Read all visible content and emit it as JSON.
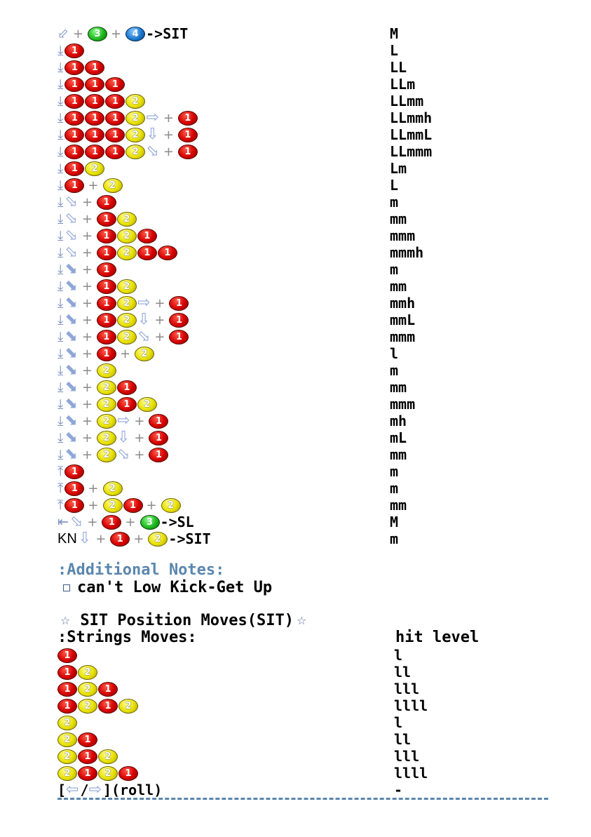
{
  "top_rows": [
    {
      "seq": [
        {
          "t": "dir",
          "v": "⬃"
        },
        {
          "t": "plus"
        },
        {
          "t": "btn",
          "v": "3"
        },
        {
          "t": "plus"
        },
        {
          "t": "btn",
          "v": "4"
        },
        {
          "t": "text",
          "v": "->SIT"
        }
      ],
      "level": "M"
    },
    {
      "seq": [
        {
          "t": "dir",
          "v": "⤓"
        },
        {
          "t": "btn",
          "v": "1"
        }
      ],
      "level": "L"
    },
    {
      "seq": [
        {
          "t": "dir",
          "v": "⤓"
        },
        {
          "t": "btn",
          "v": "1"
        },
        {
          "t": "btn",
          "v": "1"
        }
      ],
      "level": "LL"
    },
    {
      "seq": [
        {
          "t": "dir",
          "v": "⤓"
        },
        {
          "t": "btn",
          "v": "1"
        },
        {
          "t": "btn",
          "v": "1"
        },
        {
          "t": "btn",
          "v": "1"
        }
      ],
      "level": "LLm"
    },
    {
      "seq": [
        {
          "t": "dir",
          "v": "⤓"
        },
        {
          "t": "btn",
          "v": "1"
        },
        {
          "t": "btn",
          "v": "1"
        },
        {
          "t": "btn",
          "v": "1"
        },
        {
          "t": "btn",
          "v": "2"
        }
      ],
      "level": "LLmm"
    },
    {
      "seq": [
        {
          "t": "dir",
          "v": "⤓"
        },
        {
          "t": "btn",
          "v": "1"
        },
        {
          "t": "btn",
          "v": "1"
        },
        {
          "t": "btn",
          "v": "1"
        },
        {
          "t": "btn",
          "v": "2"
        },
        {
          "t": "arrow",
          "v": "⇨"
        },
        {
          "t": "plus"
        },
        {
          "t": "btn",
          "v": "1"
        }
      ],
      "level": "LLmmh"
    },
    {
      "seq": [
        {
          "t": "dir",
          "v": "⤓"
        },
        {
          "t": "btn",
          "v": "1"
        },
        {
          "t": "btn",
          "v": "1"
        },
        {
          "t": "btn",
          "v": "1"
        },
        {
          "t": "btn",
          "v": "2"
        },
        {
          "t": "arrow",
          "v": "⇩"
        },
        {
          "t": "plus"
        },
        {
          "t": "btn",
          "v": "1"
        }
      ],
      "level": "LLmmL"
    },
    {
      "seq": [
        {
          "t": "dir",
          "v": "⤓"
        },
        {
          "t": "btn",
          "v": "1"
        },
        {
          "t": "btn",
          "v": "1"
        },
        {
          "t": "btn",
          "v": "1"
        },
        {
          "t": "btn",
          "v": "2"
        },
        {
          "t": "arrow",
          "v": "⬂"
        },
        {
          "t": "plus"
        },
        {
          "t": "btn",
          "v": "1"
        }
      ],
      "level": "LLmmm"
    },
    {
      "seq": [
        {
          "t": "dir",
          "v": "⤓"
        },
        {
          "t": "btn",
          "v": "1"
        },
        {
          "t": "btn",
          "v": "2"
        }
      ],
      "level": "Lm"
    },
    {
      "seq": [
        {
          "t": "dir",
          "v": "⤓"
        },
        {
          "t": "btn",
          "v": "1"
        },
        {
          "t": "plus"
        },
        {
          "t": "btn",
          "v": "2"
        }
      ],
      "level": "L"
    },
    {
      "seq": [
        {
          "t": "dir",
          "v": "⤓"
        },
        {
          "t": "arrow",
          "v": "⬂"
        },
        {
          "t": "plus"
        },
        {
          "t": "btn",
          "v": "1"
        }
      ],
      "level": "m"
    },
    {
      "seq": [
        {
          "t": "dir",
          "v": "⤓"
        },
        {
          "t": "arrow",
          "v": "⬂"
        },
        {
          "t": "plus"
        },
        {
          "t": "btn",
          "v": "1"
        },
        {
          "t": "btn",
          "v": "2"
        }
      ],
      "level": "mm"
    },
    {
      "seq": [
        {
          "t": "dir",
          "v": "⤓"
        },
        {
          "t": "arrow",
          "v": "⬂"
        },
        {
          "t": "plus"
        },
        {
          "t": "btn",
          "v": "1"
        },
        {
          "t": "btn",
          "v": "2"
        },
        {
          "t": "btn",
          "v": "1"
        }
      ],
      "level": "mmm"
    },
    {
      "seq": [
        {
          "t": "dir",
          "v": "⤓"
        },
        {
          "t": "arrow",
          "v": "⬂"
        },
        {
          "t": "plus"
        },
        {
          "t": "btn",
          "v": "1"
        },
        {
          "t": "btn",
          "v": "2"
        },
        {
          "t": "btn",
          "v": "1"
        },
        {
          "t": "btn",
          "v": "1"
        }
      ],
      "level": "mmmh"
    },
    {
      "seq": [
        {
          "t": "dir",
          "v": "⤓"
        },
        {
          "t": "arrow",
          "v": "⬊"
        },
        {
          "t": "plus"
        },
        {
          "t": "btn",
          "v": "1"
        }
      ],
      "level": "m"
    },
    {
      "seq": [
        {
          "t": "dir",
          "v": "⤓"
        },
        {
          "t": "arrow",
          "v": "⬊"
        },
        {
          "t": "plus"
        },
        {
          "t": "btn",
          "v": "1"
        },
        {
          "t": "btn",
          "v": "2"
        }
      ],
      "level": "mm"
    },
    {
      "seq": [
        {
          "t": "dir",
          "v": "⤓"
        },
        {
          "t": "arrow",
          "v": "⬊"
        },
        {
          "t": "plus"
        },
        {
          "t": "btn",
          "v": "1"
        },
        {
          "t": "btn",
          "v": "2"
        },
        {
          "t": "arrow",
          "v": "⇨"
        },
        {
          "t": "plus"
        },
        {
          "t": "btn",
          "v": "1"
        }
      ],
      "level": "mmh"
    },
    {
      "seq": [
        {
          "t": "dir",
          "v": "⤓"
        },
        {
          "t": "arrow",
          "v": "⬊"
        },
        {
          "t": "plus"
        },
        {
          "t": "btn",
          "v": "1"
        },
        {
          "t": "btn",
          "v": "2"
        },
        {
          "t": "arrow",
          "v": "⇩"
        },
        {
          "t": "plus"
        },
        {
          "t": "btn",
          "v": "1"
        }
      ],
      "level": "mmL"
    },
    {
      "seq": [
        {
          "t": "dir",
          "v": "⤓"
        },
        {
          "t": "arrow",
          "v": "⬊"
        },
        {
          "t": "plus"
        },
        {
          "t": "btn",
          "v": "1"
        },
        {
          "t": "btn",
          "v": "2"
        },
        {
          "t": "arrow",
          "v": "⬂"
        },
        {
          "t": "plus"
        },
        {
          "t": "btn",
          "v": "1"
        }
      ],
      "level": "mmm"
    },
    {
      "seq": [
        {
          "t": "dir",
          "v": "⤓"
        },
        {
          "t": "arrow",
          "v": "⬊"
        },
        {
          "t": "plus"
        },
        {
          "t": "btn",
          "v": "1"
        },
        {
          "t": "plus"
        },
        {
          "t": "btn",
          "v": "2"
        }
      ],
      "level": "l"
    },
    {
      "seq": [
        {
          "t": "dir",
          "v": "⤓"
        },
        {
          "t": "arrow",
          "v": "⬊"
        },
        {
          "t": "plus"
        },
        {
          "t": "btn",
          "v": "2"
        }
      ],
      "level": "m"
    },
    {
      "seq": [
        {
          "t": "dir",
          "v": "⤓"
        },
        {
          "t": "arrow",
          "v": "⬊"
        },
        {
          "t": "plus"
        },
        {
          "t": "btn",
          "v": "2"
        },
        {
          "t": "btn",
          "v": "1"
        }
      ],
      "level": "mm"
    },
    {
      "seq": [
        {
          "t": "dir",
          "v": "⤓"
        },
        {
          "t": "arrow",
          "v": "⬊"
        },
        {
          "t": "plus"
        },
        {
          "t": "btn",
          "v": "2"
        },
        {
          "t": "btn",
          "v": "1"
        },
        {
          "t": "btn",
          "v": "2"
        }
      ],
      "level": "mmm"
    },
    {
      "seq": [
        {
          "t": "dir",
          "v": "⤓"
        },
        {
          "t": "arrow",
          "v": "⬊"
        },
        {
          "t": "plus"
        },
        {
          "t": "btn",
          "v": "2"
        },
        {
          "t": "arrow",
          "v": "⇨"
        },
        {
          "t": "plus"
        },
        {
          "t": "btn",
          "v": "1"
        }
      ],
      "level": "mh"
    },
    {
      "seq": [
        {
          "t": "dir",
          "v": "⤓"
        },
        {
          "t": "arrow",
          "v": "⬊"
        },
        {
          "t": "plus"
        },
        {
          "t": "btn",
          "v": "2"
        },
        {
          "t": "arrow",
          "v": "⇩"
        },
        {
          "t": "plus"
        },
        {
          "t": "btn",
          "v": "1"
        }
      ],
      "level": "mL"
    },
    {
      "seq": [
        {
          "t": "dir",
          "v": "⤓"
        },
        {
          "t": "arrow",
          "v": "⬊"
        },
        {
          "t": "plus"
        },
        {
          "t": "btn",
          "v": "2"
        },
        {
          "t": "arrow",
          "v": "⬂"
        },
        {
          "t": "plus"
        },
        {
          "t": "btn",
          "v": "1"
        }
      ],
      "level": "mm"
    },
    {
      "seq": [
        {
          "t": "dir",
          "v": "⤒"
        },
        {
          "t": "btn",
          "v": "1"
        }
      ],
      "level": "m"
    },
    {
      "seq": [
        {
          "t": "dir",
          "v": "⤒"
        },
        {
          "t": "btn",
          "v": "1"
        },
        {
          "t": "plus"
        },
        {
          "t": "btn",
          "v": "2"
        }
      ],
      "level": "m"
    },
    {
      "seq": [
        {
          "t": "dir",
          "v": "⤒"
        },
        {
          "t": "btn",
          "v": "1"
        },
        {
          "t": "plus"
        },
        {
          "t": "btn",
          "v": "2"
        },
        {
          "t": "btn",
          "v": "1"
        },
        {
          "t": "plus"
        },
        {
          "t": "btn",
          "v": "2"
        }
      ],
      "level": "mm"
    },
    {
      "seq": [
        {
          "t": "dir",
          "v": "⇤"
        },
        {
          "t": "arrow",
          "v": "⬂"
        },
        {
          "t": "plus"
        },
        {
          "t": "btn",
          "v": "1"
        },
        {
          "t": "plus"
        },
        {
          "t": "btn",
          "v": "3"
        },
        {
          "t": "text",
          "v": "->SL"
        }
      ],
      "level": "M"
    },
    {
      "seq": [
        {
          "t": "textsans",
          "v": "KN"
        },
        {
          "t": "arrow",
          "v": "⇩"
        },
        {
          "t": "plus"
        },
        {
          "t": "btn",
          "v": "1"
        },
        {
          "t": "plus"
        },
        {
          "t": "btn",
          "v": "2"
        },
        {
          "t": "text",
          "v": "->SIT"
        }
      ],
      "level": "m"
    }
  ],
  "notes": {
    "title": ":Additional Notes:",
    "items": [
      "can't Low Kick-Get Up"
    ]
  },
  "sit_section": {
    "title": "SIT Position Moves(SIT)",
    "strings_label": ":Strings Moves:",
    "hit_level_label": "hit level",
    "rows": [
      {
        "seq": [
          {
            "t": "btn",
            "v": "1"
          }
        ],
        "level": "l"
      },
      {
        "seq": [
          {
            "t": "btn",
            "v": "1"
          },
          {
            "t": "btn",
            "v": "2"
          }
        ],
        "level": "ll"
      },
      {
        "seq": [
          {
            "t": "btn",
            "v": "1"
          },
          {
            "t": "btn",
            "v": "2"
          },
          {
            "t": "btn",
            "v": "1"
          }
        ],
        "level": "lll"
      },
      {
        "seq": [
          {
            "t": "btn",
            "v": "1"
          },
          {
            "t": "btn",
            "v": "2"
          },
          {
            "t": "btn",
            "v": "1"
          },
          {
            "t": "btn",
            "v": "2"
          }
        ],
        "level": "llll"
      },
      {
        "seq": [
          {
            "t": "btn",
            "v": "2"
          }
        ],
        "level": "l"
      },
      {
        "seq": [
          {
            "t": "btn",
            "v": "2"
          },
          {
            "t": "btn",
            "v": "1"
          }
        ],
        "level": "ll"
      },
      {
        "seq": [
          {
            "t": "btn",
            "v": "2"
          },
          {
            "t": "btn",
            "v": "1"
          },
          {
            "t": "btn",
            "v": "2"
          }
        ],
        "level": "lll"
      },
      {
        "seq": [
          {
            "t": "btn",
            "v": "2"
          },
          {
            "t": "btn",
            "v": "1"
          },
          {
            "t": "btn",
            "v": "2"
          },
          {
            "t": "btn",
            "v": "1"
          }
        ],
        "level": "llll"
      },
      {
        "seq": [
          {
            "t": "text",
            "v": "["
          },
          {
            "t": "arrow",
            "v": "⇦"
          },
          {
            "t": "text",
            "v": "/"
          },
          {
            "t": "arrow",
            "v": "⇨"
          },
          {
            "t": "text",
            "v": "](roll)"
          }
        ],
        "level": "-"
      }
    ]
  },
  "colors": {
    "button_1": "#d40000",
    "button_2": "#e8e000",
    "button_3": "#1fb81f",
    "button_4": "#1a78d0",
    "accent": "#5b86ad"
  }
}
